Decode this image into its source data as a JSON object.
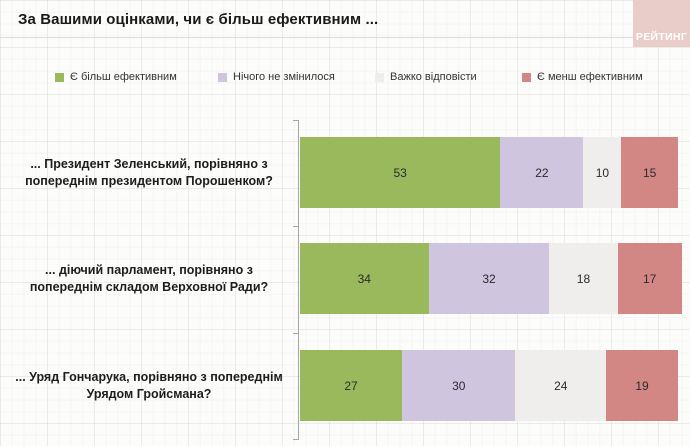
{
  "header": {
    "title": "За Вашими оцінками, чи є більш ефективним ...",
    "logo_text": "РЕЙТИНГ",
    "logo_bg": "#e9cdc9",
    "logo_text_color": "#ffffff"
  },
  "chart_data": {
    "type": "bar",
    "orientation": "horizontal",
    "stacked": true,
    "title": "За Вашими оцінками, чи є більш ефективним ...",
    "categories": [
      "... Президент Зеленський, порівняно з попереднім президентом Порошенком?",
      "... діючий парламент, порівняно з попереднім складом Верховної Ради?",
      "... Уряд Гончарука, порівняно з попереднім Урядом Гройсмана?"
    ],
    "series": [
      {
        "name": "Є більш ефективним",
        "color": "#9ab95c",
        "values": [
          53,
          34,
          27
        ]
      },
      {
        "name": "Нічого не змінилося",
        "color": "#cfc5df",
        "values": [
          22,
          32,
          30
        ]
      },
      {
        "name": "Важко відповісти",
        "color": "#efeeec",
        "values": [
          10,
          18,
          24
        ]
      },
      {
        "name": "Є менш ефективним",
        "color": "#d38784",
        "values": [
          15,
          17,
          19
        ]
      }
    ],
    "x_range": [
      0,
      100
    ],
    "value_labels": "inside",
    "legend_position": "top",
    "grid": "faint-graph-paper"
  }
}
